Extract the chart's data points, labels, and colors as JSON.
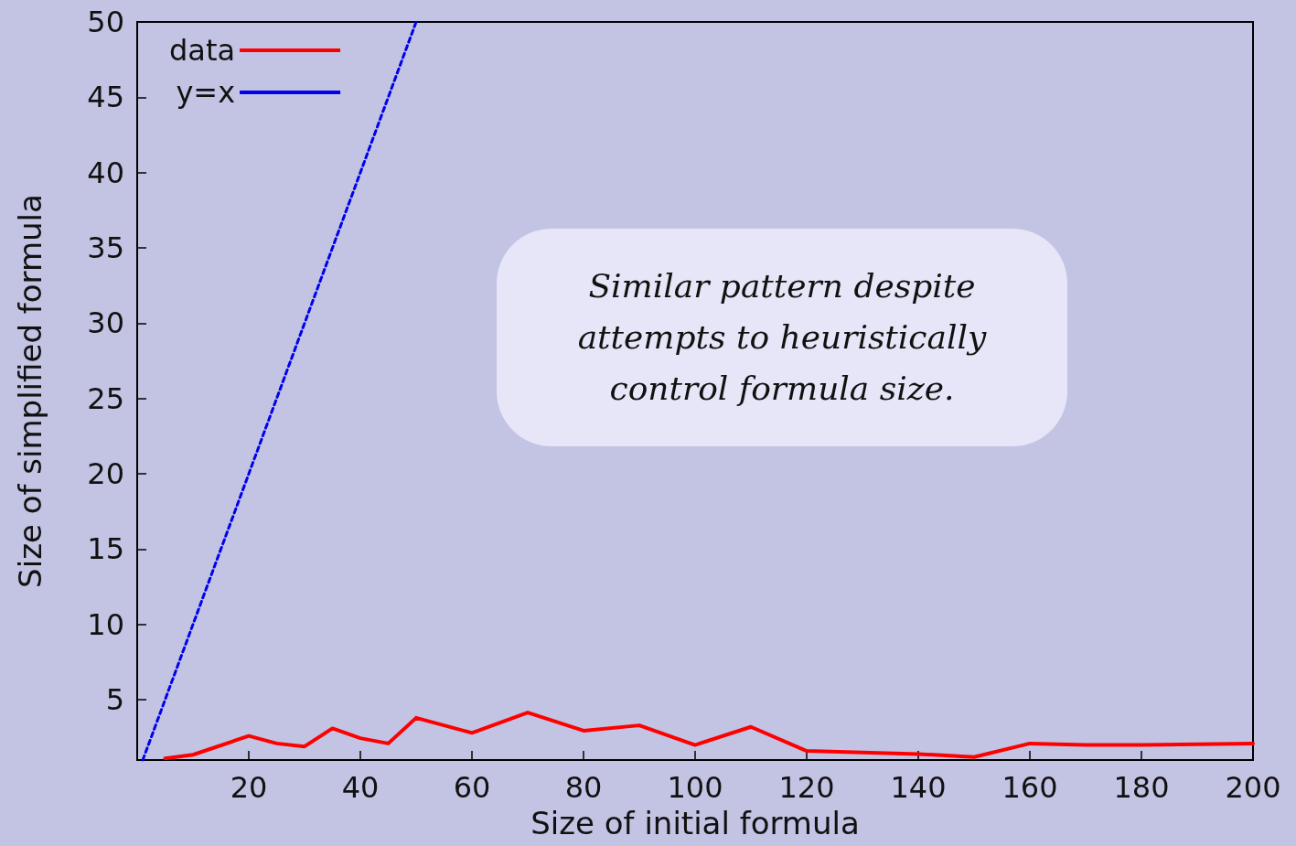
{
  "chart_data": {
    "type": "line",
    "xlabel": "Size of initial formula",
    "ylabel": "Size of simplified formula",
    "annotations": [
      "Similar pattern despite attempts to heuristically control formula size."
    ],
    "xlim": [
      0,
      200
    ],
    "xticks": [
      {
        "value": 0,
        "label": null
      },
      20,
      40,
      60,
      80,
      100,
      120,
      140,
      160,
      180,
      200
    ],
    "ylim": [
      1,
      50
    ],
    "yticks": [
      5,
      10,
      15,
      20,
      25,
      30,
      35,
      40,
      45,
      50
    ],
    "grid": false,
    "legend": "top left",
    "marker": "none",
    "series": [
      {
        "name": "data",
        "color": "#ff0000",
        "line_style": "solid",
        "x": [
          5,
          10,
          20,
          25,
          30,
          35,
          40,
          45,
          50,
          60,
          70,
          80,
          90,
          100,
          110,
          120,
          130,
          140,
          150,
          160,
          170,
          180,
          190,
          200
        ],
        "values": [
          1.1,
          1.35,
          2.6,
          2.1,
          1.9,
          3.1,
          2.45,
          2.1,
          3.8,
          2.8,
          4.15,
          2.95,
          3.3,
          2.0,
          3.2,
          1.6,
          1.5,
          1.4,
          1.2,
          2.1,
          2.0,
          2.0,
          2.05,
          2.1
        ]
      },
      {
        "name": "y=x",
        "color": "#0000ee",
        "line_style": "dashed",
        "x": [
          1,
          50
        ],
        "values": [
          1,
          50
        ]
      }
    ]
  }
}
